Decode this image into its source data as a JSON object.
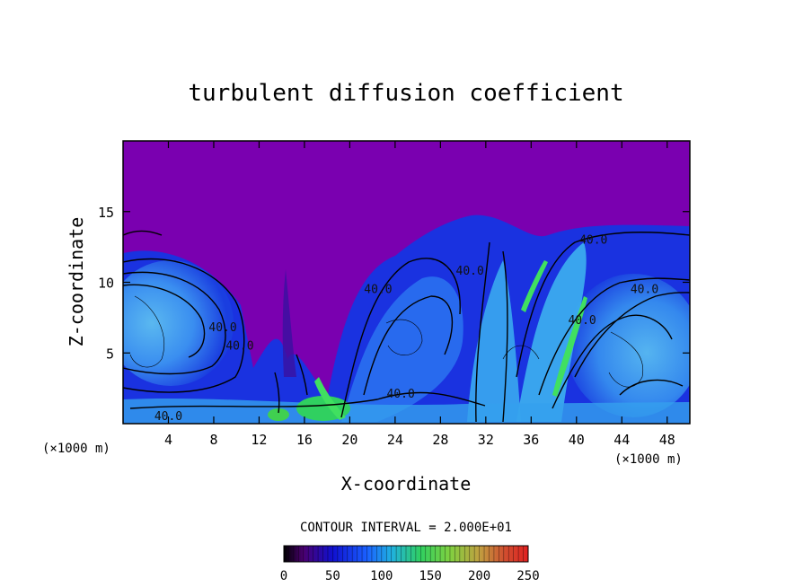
{
  "chart_data": {
    "type": "heatmap",
    "title": "turbulent diffusion coefficient",
    "xlabel": "X-coordinate",
    "ylabel": "Z-coordinate",
    "x_unit": "(×1000 m)",
    "y_unit": "(×1000 m)",
    "xlim": [
      0,
      50
    ],
    "ylim": [
      0,
      20
    ],
    "x_ticks": [
      4,
      8,
      12,
      16,
      20,
      24,
      28,
      32,
      36,
      40,
      44,
      48
    ],
    "y_ticks": [
      5,
      10,
      15
    ],
    "contour_interval_label": "CONTOUR INTERVAL = 2.000E+01",
    "colorbar": {
      "min": 0,
      "max": 250,
      "ticks": [
        0,
        50,
        100,
        150,
        200,
        250
      ]
    },
    "contour_labels": [
      {
        "text": "40.0",
        "x": 4.0,
        "z": 0.5
      },
      {
        "text": "40.0",
        "x": 8.8,
        "z": 6.8
      },
      {
        "text": "40.0",
        "x": 10.3,
        "z": 5.5
      },
      {
        "text": "40.0",
        "x": 22.5,
        "z": 9.5
      },
      {
        "text": "40.0",
        "x": 24.5,
        "z": 2.1
      },
      {
        "text": "40.0",
        "x": 30.6,
        "z": 10.8
      },
      {
        "text": "40.0",
        "x": 41.5,
        "z": 13.0
      },
      {
        "text": "40.0",
        "x": 46.0,
        "z": 9.5
      },
      {
        "text": "40.0",
        "x": 40.5,
        "z": 7.3
      }
    ]
  }
}
